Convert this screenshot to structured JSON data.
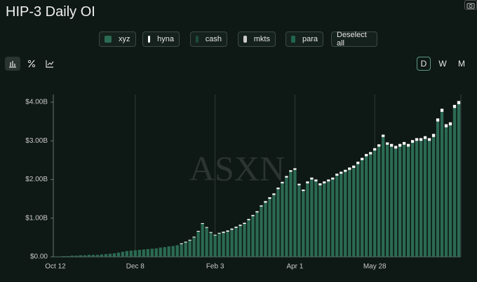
{
  "chart_data": {
    "type": "bar",
    "title": "HIP-3 Daily OI",
    "watermark": "ASXN",
    "controls": {
      "deselect": "Deselect all",
      "periods": [
        "D",
        "W",
        "M"
      ]
    },
    "categories": [
      "Oct 12",
      null,
      null,
      null,
      null,
      null,
      null,
      null,
      null,
      null,
      null,
      null,
      null,
      null,
      null,
      null,
      null,
      null,
      null,
      "Dec 8",
      null,
      null,
      null,
      null,
      null,
      null,
      null,
      null,
      null,
      null,
      null,
      null,
      null,
      null,
      null,
      null,
      null,
      null,
      "Feb 3",
      null,
      null,
      null,
      null,
      null,
      null,
      null,
      null,
      null,
      null,
      null,
      null,
      null,
      null,
      null,
      null,
      null,
      null,
      "Apr 1",
      null,
      null,
      null,
      null,
      null,
      null,
      null,
      null,
      null,
      null,
      null,
      null,
      null,
      null,
      null,
      null,
      null,
      null,
      "May 28",
      null,
      null,
      null,
      null,
      null,
      null,
      null,
      null,
      null,
      null,
      null,
      null,
      null,
      null,
      null,
      null,
      null,
      null,
      null,
      null
    ],
    "series": [
      {
        "name": "xyz",
        "color": "#2b6a53",
        "values": [
          0.01,
          0.01,
          0.02,
          0.02,
          0.03,
          0.03,
          0.04,
          0.04,
          0.05,
          0.05,
          0.05,
          0.06,
          0.07,
          0.08,
          0.09,
          0.11,
          0.13,
          0.15,
          0.16,
          0.17,
          0.18,
          0.19,
          0.2,
          0.21,
          0.22,
          0.24,
          0.25,
          0.27,
          0.28,
          0.3,
          0.33,
          0.37,
          0.42,
          0.5,
          0.65,
          0.85,
          0.75,
          0.62,
          0.55,
          0.6,
          0.62,
          0.65,
          0.7,
          0.75,
          0.8,
          0.85,
          0.95,
          1.05,
          1.15,
          1.3,
          1.4,
          1.5,
          1.6,
          1.75,
          1.9,
          2.05,
          2.2,
          2.25,
          1.85,
          1.7,
          1.9,
          2.0,
          1.95,
          1.85,
          1.9,
          1.95,
          2.0,
          2.1,
          2.15,
          2.2,
          2.25,
          2.3,
          2.4,
          2.5,
          2.6,
          2.65,
          2.75,
          2.85,
          3.1,
          2.9,
          2.85,
          2.8,
          2.85,
          2.9,
          2.85,
          2.95,
          3.0,
          3.0,
          3.05,
          3.0,
          3.1,
          3.5,
          3.75,
          3.35,
          3.4,
          3.85,
          3.95
        ]
      },
      {
        "name": "hyna",
        "color": "#ffffff",
        "values": [
          0,
          0,
          0,
          0,
          0,
          0,
          0,
          0,
          0,
          0,
          0,
          0,
          0,
          0,
          0,
          0,
          0,
          0,
          0,
          0,
          0,
          0,
          0,
          0,
          0,
          0,
          0,
          0,
          0,
          0,
          0.02,
          0.02,
          0.02,
          0.02,
          0.02,
          0.02,
          0.02,
          0.02,
          0.02,
          0.02,
          0.03,
          0.03,
          0.03,
          0.03,
          0.03,
          0.03,
          0.03,
          0.03,
          0.03,
          0.03,
          0.04,
          0.04,
          0.04,
          0.04,
          0.04,
          0.04,
          0.04,
          0.04,
          0.04,
          0.04,
          0.05,
          0.05,
          0.05,
          0.05,
          0.05,
          0.05,
          0.05,
          0.05,
          0.05,
          0.05,
          0.06,
          0.06,
          0.06,
          0.06,
          0.06,
          0.06,
          0.06,
          0.06,
          0.06,
          0.06,
          0.07,
          0.07,
          0.07,
          0.07,
          0.07,
          0.07,
          0.07,
          0.07,
          0.07,
          0.07,
          0.08,
          0.08,
          0.08,
          0.08,
          0.08,
          0.08,
          0.08
        ]
      },
      {
        "name": "cash",
        "color": "#1d4c3a",
        "values": [
          0,
          0,
          0,
          0,
          0,
          0,
          0,
          0,
          0,
          0,
          0,
          0,
          0,
          0,
          0,
          0,
          0,
          0,
          0,
          0,
          0,
          0,
          0,
          0,
          0,
          0,
          0,
          0,
          0,
          0,
          0,
          0,
          0,
          0,
          0,
          0,
          0,
          0,
          0,
          0,
          0,
          0,
          0,
          0,
          0,
          0,
          0,
          0,
          0,
          0,
          0,
          0,
          0,
          0,
          0,
          0,
          0,
          0,
          0,
          0,
          0,
          0,
          0,
          0,
          0,
          0,
          0,
          0,
          0,
          0,
          0,
          0,
          0,
          0,
          0,
          0,
          0,
          0,
          0,
          0,
          0,
          0,
          0,
          0,
          0,
          0,
          0,
          0,
          0,
          0,
          0,
          0,
          0,
          0,
          0,
          0,
          0
        ]
      },
      {
        "name": "mkts",
        "color": "#cccccc",
        "values": [
          0,
          0,
          0,
          0,
          0,
          0,
          0,
          0,
          0,
          0,
          0,
          0,
          0,
          0,
          0,
          0,
          0,
          0,
          0,
          0,
          0,
          0,
          0,
          0,
          0,
          0,
          0,
          0,
          0,
          0,
          0,
          0,
          0,
          0,
          0,
          0,
          0,
          0,
          0,
          0,
          0,
          0,
          0,
          0,
          0,
          0,
          0,
          0,
          0,
          0,
          0,
          0,
          0,
          0,
          0,
          0,
          0,
          0,
          0,
          0,
          0,
          0,
          0,
          0,
          0,
          0,
          0,
          0,
          0,
          0,
          0,
          0,
          0,
          0,
          0,
          0,
          0,
          0,
          0,
          0,
          0,
          0,
          0,
          0,
          0,
          0,
          0,
          0,
          0,
          0,
          0,
          0,
          0,
          0,
          0,
          0,
          0
        ]
      },
      {
        "name": "para",
        "color": "#21674d",
        "values": [
          0,
          0,
          0,
          0,
          0,
          0,
          0,
          0,
          0,
          0,
          0,
          0,
          0,
          0,
          0,
          0,
          0,
          0,
          0,
          0,
          0,
          0,
          0,
          0,
          0,
          0,
          0,
          0,
          0,
          0,
          0,
          0,
          0,
          0,
          0,
          0,
          0,
          0,
          0,
          0,
          0,
          0,
          0,
          0,
          0,
          0,
          0,
          0,
          0,
          0,
          0,
          0,
          0,
          0,
          0,
          0,
          0,
          0,
          0,
          0,
          0,
          0,
          0,
          0,
          0,
          0,
          0,
          0,
          0,
          0,
          0,
          0,
          0,
          0,
          0,
          0,
          0,
          0,
          0,
          0,
          0,
          0,
          0,
          0,
          0,
          0,
          0,
          0,
          0,
          0,
          0,
          0,
          0,
          0,
          0,
          0,
          0
        ]
      }
    ],
    "ylim": [
      0,
      4.2
    ],
    "yticks": [
      {
        "value": 0,
        "label": "$0.00"
      },
      {
        "value": 1,
        "label": "$1.00B"
      },
      {
        "value": 2,
        "label": "$2.00B"
      },
      {
        "value": 3,
        "label": "$3.00B"
      },
      {
        "value": 4,
        "label": "$4.00B"
      }
    ],
    "grid": false,
    "xgrid": true,
    "stacked": true
  }
}
